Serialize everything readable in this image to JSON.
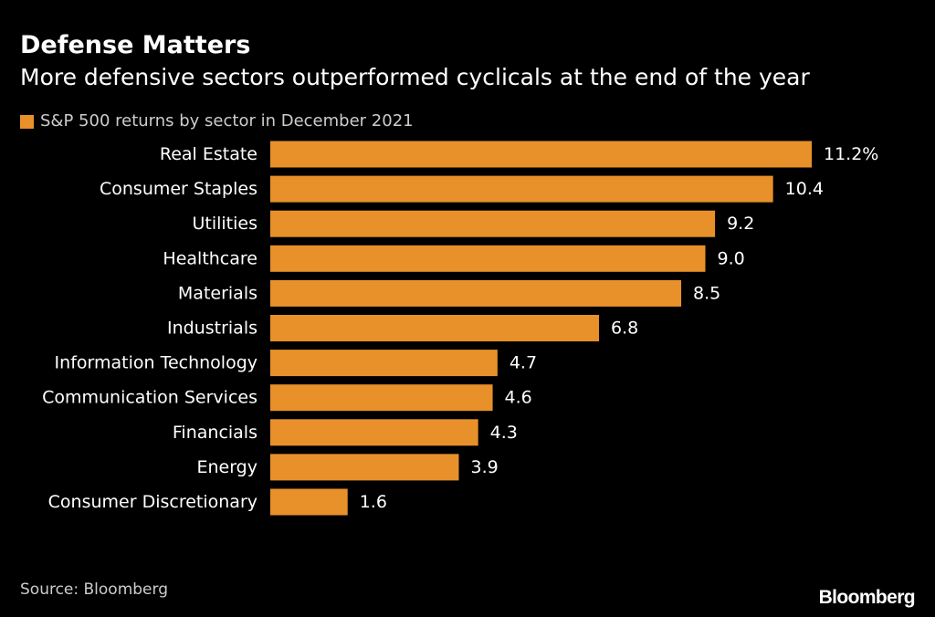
{
  "colors": {
    "background": "#000000",
    "bar": "#e8912a",
    "text": "#ffffff",
    "muted_text": "#cccccc"
  },
  "chart_data": {
    "type": "bar",
    "orientation": "horizontal",
    "title": "Defense Matters",
    "subtitle": "More defensive sectors outperformed cyclicals at the end of the year",
    "legend": {
      "placement": "top-left",
      "entries": [
        "S&P 500 returns by sector in December 2021"
      ]
    },
    "categories": [
      "Real Estate",
      "Consumer Staples",
      "Utilities",
      "Healthcare",
      "Materials",
      "Industrials",
      "Information Technology",
      "Communication Services",
      "Financials",
      "Energy",
      "Consumer Discretionary"
    ],
    "series": [
      {
        "name": "S&P 500 returns by sector in December 2021",
        "values": [
          11.2,
          10.4,
          9.2,
          9.0,
          8.5,
          6.8,
          4.7,
          4.6,
          4.3,
          3.9,
          1.6
        ]
      }
    ],
    "value_labels": [
      "11.2%",
      "10.4",
      "9.2",
      "9.0",
      "8.5",
      "6.8",
      "4.7",
      "4.6",
      "4.3",
      "3.9",
      "1.6"
    ],
    "xlim": [
      0,
      11.2
    ],
    "grid": false,
    "source": "Source: Bloomberg"
  },
  "branding": {
    "logo": "Bloomberg"
  }
}
